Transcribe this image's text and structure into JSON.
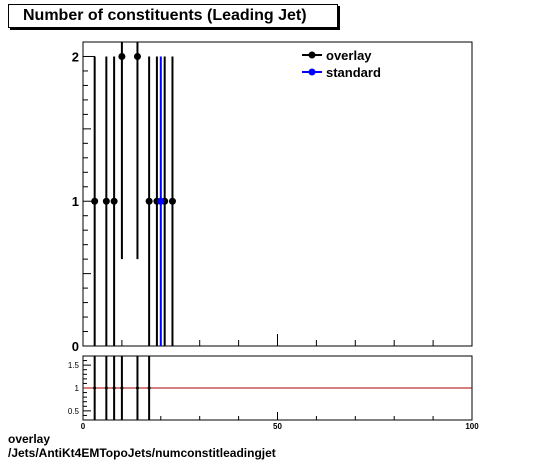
{
  "title": "Number of constituents (Leading Jet)",
  "caption": {
    "line1": "overlay",
    "line2": "/Jets/AntiKt4EMTopoJets/numconstitleadingjet"
  },
  "colors": {
    "overlay": "#000000",
    "standard": "#0000ff",
    "ratio_line": "#aa0000"
  },
  "chart_data": [
    {
      "type": "scatter",
      "title": "Number of constituents (Leading Jet)",
      "xlim": [
        0,
        100
      ],
      "ylim": [
        0,
        2.1
      ],
      "y_ticks": [
        0,
        1,
        2
      ],
      "legend": {
        "position": "top-right",
        "entries": [
          "overlay",
          "standard"
        ]
      },
      "series": [
        {
          "name": "overlay",
          "x": [
            3,
            6,
            8,
            10,
            14,
            17,
            19,
            21,
            23
          ],
          "y": [
            1,
            1,
            1,
            2,
            2,
            1,
            1,
            1,
            1
          ],
          "y_err": [
            1,
            1,
            1,
            1.4,
            1.4,
            1,
            1,
            1,
            1
          ]
        },
        {
          "name": "standard",
          "x": [
            20
          ],
          "y": [
            1
          ],
          "y_err": [
            1
          ]
        }
      ]
    },
    {
      "type": "line",
      "xlim": [
        0,
        100
      ],
      "ylim": [
        0.3,
        1.7
      ],
      "x_ticks": [
        0,
        50,
        100
      ],
      "y_ticks": [
        0.5,
        1,
        1.5
      ],
      "reference_line": 1,
      "series": [
        {
          "name": "ratio",
          "x": [
            3,
            6,
            8,
            10,
            14,
            17
          ],
          "y": [
            1,
            1,
            1,
            1,
            1,
            1
          ]
        }
      ]
    }
  ]
}
